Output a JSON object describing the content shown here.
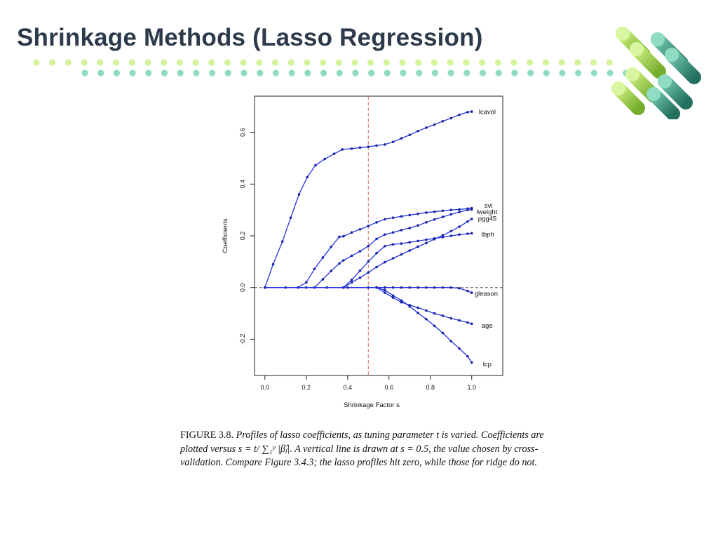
{
  "slide": {
    "title": "Shrinkage Methods (Lasso Regression)"
  },
  "colors": {
    "title": "#2d3a4a",
    "dots_row1": "#d6f39a",
    "dots_row2": "#8fdcc3",
    "lines": "#2233dd",
    "cutoff": "#e06060",
    "cyl_green": "#8cc63f",
    "cyl_teal": "#2e8b76"
  },
  "chart_data": {
    "type": "line",
    "xlabel": "Shrinkage Factor s",
    "ylabel": "Coefficients",
    "xlim": [
      -0.05,
      1.15
    ],
    "ylim": [
      -0.34,
      0.74
    ],
    "xticks": [
      "0.0",
      "0.2",
      "0.4",
      "0.6",
      "0.8",
      "1.0"
    ],
    "yticks": [
      "-0.2",
      "0.0",
      "0.2",
      "0.4",
      "0.6"
    ],
    "vline": 0.5,
    "hline": 0.0,
    "grid": false,
    "series": [
      {
        "name": "lcavol",
        "x": [
          0,
          0.04,
          0.085,
          0.125,
          0.165,
          0.205,
          0.245,
          0.29,
          0.335,
          0.375,
          0.42,
          0.46,
          0.5,
          0.54,
          0.58,
          0.62,
          0.66,
          0.7,
          0.74,
          0.78,
          0.82,
          0.86,
          0.9,
          0.94,
          0.98,
          1.0
        ],
        "y": [
          0,
          0.09,
          0.178,
          0.27,
          0.36,
          0.427,
          0.473,
          0.497,
          0.517,
          0.534,
          0.537,
          0.541,
          0.544,
          0.549,
          0.553,
          0.563,
          0.577,
          0.59,
          0.605,
          0.618,
          0.63,
          0.643,
          0.655,
          0.668,
          0.678,
          0.68
        ]
      },
      {
        "name": "svi",
        "x": [
          0,
          0.16,
          0.2,
          0.24,
          0.28,
          0.32,
          0.36,
          0.38,
          0.42,
          0.46,
          0.5,
          0.54,
          0.58,
          0.62,
          0.66,
          0.7,
          0.74,
          0.78,
          0.82,
          0.86,
          0.9,
          0.94,
          0.98,
          1.0
        ],
        "y": [
          0,
          0,
          0.02,
          0.072,
          0.116,
          0.157,
          0.196,
          0.198,
          0.213,
          0.225,
          0.238,
          0.252,
          0.264,
          0.27,
          0.275,
          0.28,
          0.285,
          0.29,
          0.293,
          0.297,
          0.3,
          0.302,
          0.305,
          0.307
        ]
      },
      {
        "name": "lweight",
        "x": [
          0,
          0.24,
          0.28,
          0.32,
          0.36,
          0.38,
          0.42,
          0.46,
          0.5,
          0.54,
          0.58,
          0.62,
          0.66,
          0.7,
          0.74,
          0.78,
          0.82,
          0.86,
          0.9,
          0.94,
          0.98,
          1.0
        ],
        "y": [
          0,
          0,
          0.032,
          0.064,
          0.093,
          0.105,
          0.123,
          0.14,
          0.16,
          0.188,
          0.205,
          0.213,
          0.222,
          0.23,
          0.24,
          0.252,
          0.263,
          0.273,
          0.283,
          0.292,
          0.3,
          0.302
        ]
      },
      {
        "name": "pgg45",
        "x": [
          0,
          0.38,
          0.42,
          0.46,
          0.5,
          0.54,
          0.58,
          0.62,
          0.66,
          0.7,
          0.74,
          0.78,
          0.82,
          0.86,
          0.9,
          0.94,
          0.98,
          1.0
        ],
        "y": [
          0,
          0,
          0.02,
          0.038,
          0.058,
          0.079,
          0.098,
          0.113,
          0.128,
          0.143,
          0.158,
          0.172,
          0.187,
          0.202,
          0.218,
          0.235,
          0.255,
          0.265
        ]
      },
      {
        "name": "lbph",
        "x": [
          0,
          0.38,
          0.42,
          0.46,
          0.5,
          0.54,
          0.58,
          0.62,
          0.66,
          0.7,
          0.74,
          0.78,
          0.82,
          0.86,
          0.9,
          0.94,
          0.98,
          1.0
        ],
        "y": [
          0,
          0,
          0.03,
          0.065,
          0.1,
          0.133,
          0.16,
          0.167,
          0.17,
          0.175,
          0.18,
          0.185,
          0.19,
          0.195,
          0.2,
          0.205,
          0.208,
          0.21
        ]
      },
      {
        "name": "gleason",
        "x": [
          0,
          0.1,
          0.2,
          0.3,
          0.4,
          0.5,
          0.54,
          0.58,
          0.62,
          0.66,
          0.7,
          0.74,
          0.78,
          0.82,
          0.86,
          0.9,
          0.94,
          0.98,
          1.0
        ],
        "y": [
          0,
          0,
          0,
          0,
          0,
          0,
          0,
          0,
          0,
          0,
          0,
          0,
          0,
          0,
          0,
          0,
          -0.003,
          -0.013,
          -0.02
        ]
      },
      {
        "name": "age",
        "x": [
          0,
          0.54,
          0.58,
          0.62,
          0.66,
          0.7,
          0.74,
          0.78,
          0.82,
          0.86,
          0.9,
          0.94,
          0.98,
          1.0
        ],
        "y": [
          0,
          0,
          -0.02,
          -0.039,
          -0.057,
          -0.068,
          -0.078,
          -0.089,
          -0.1,
          -0.109,
          -0.119,
          -0.127,
          -0.135,
          -0.14
        ]
      },
      {
        "name": "lcp",
        "x": [
          0,
          0.54,
          0.58,
          0.62,
          0.66,
          0.7,
          0.74,
          0.78,
          0.82,
          0.86,
          0.9,
          0.94,
          0.98,
          1.0
        ],
        "y": [
          0,
          0,
          -0.01,
          -0.031,
          -0.05,
          -0.073,
          -0.098,
          -0.122,
          -0.148,
          -0.176,
          -0.207,
          -0.236,
          -0.266,
          -0.29
        ]
      }
    ],
    "labels": [
      {
        "text": "lcavol"
      },
      {
        "text": "svi"
      },
      {
        "text": "lweight"
      },
      {
        "text": "pgg45"
      },
      {
        "text": "lbph"
      },
      {
        "text": "gleason"
      },
      {
        "text": "age"
      },
      {
        "text": "lcp"
      }
    ]
  },
  "caption": {
    "figure": "FIGURE 3.8.",
    "text": "Profiles of lasso coefficients, as tuning parameter t is varied. Coefficients are plotted versus s = t/ ∑₁ᵖ |β̂ⱼ|. A vertical line is drawn at s = 0.5, the value chosen by cross-validation. Compare Figure 3.4.3; the lasso profiles hit zero, while those for ridge do not."
  }
}
